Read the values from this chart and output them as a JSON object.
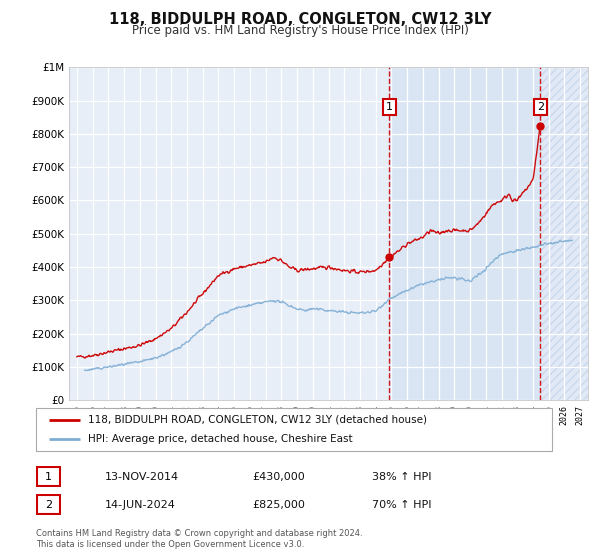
{
  "title": "118, BIDDULPH ROAD, CONGLETON, CW12 3LY",
  "subtitle": "Price paid vs. HM Land Registry's House Price Index (HPI)",
  "title_fontsize": 10.5,
  "subtitle_fontsize": 8.5,
  "plot_bg_color": "#e8eef8",
  "grid_color": "#ffffff",
  "red_line_color": "#cc0000",
  "blue_line_color": "#7eadd4",
  "shade_color": "#d0dff0",
  "hatch_color": "#c0d0e8",
  "marker1_date": 2014.87,
  "marker1_value": 430000,
  "marker2_date": 2024.46,
  "marker2_value": 825000,
  "vline1_date": 2014.87,
  "vline2_date": 2024.46,
  "xmin": 1994.5,
  "xmax": 2027.5,
  "ymin": 0,
  "ymax": 1000000,
  "yticks": [
    0,
    100000,
    200000,
    300000,
    400000,
    500000,
    600000,
    700000,
    800000,
    900000,
    1000000
  ],
  "ytick_labels": [
    "£0",
    "£100K",
    "£200K",
    "£300K",
    "£400K",
    "£500K",
    "£600K",
    "£700K",
    "£800K",
    "£900K",
    "£1M"
  ],
  "xticks": [
    1995,
    1996,
    1997,
    1998,
    1999,
    2000,
    2001,
    2002,
    2003,
    2004,
    2005,
    2006,
    2007,
    2008,
    2009,
    2010,
    2011,
    2012,
    2013,
    2014,
    2015,
    2016,
    2017,
    2018,
    2019,
    2020,
    2021,
    2022,
    2023,
    2024,
    2025,
    2026,
    2027
  ],
  "legend1_label": "118, BIDDULPH ROAD, CONGLETON, CW12 3LY (detached house)",
  "legend2_label": "HPI: Average price, detached house, Cheshire East",
  "note1_date": "13-NOV-2014",
  "note1_price": "£430,000",
  "note1_hpi": "38% ↑ HPI",
  "note2_date": "14-JUN-2024",
  "note2_price": "£825,000",
  "note2_hpi": "70% ↑ HPI",
  "footer": "Contains HM Land Registry data © Crown copyright and database right 2024.\nThis data is licensed under the Open Government Licence v3.0."
}
